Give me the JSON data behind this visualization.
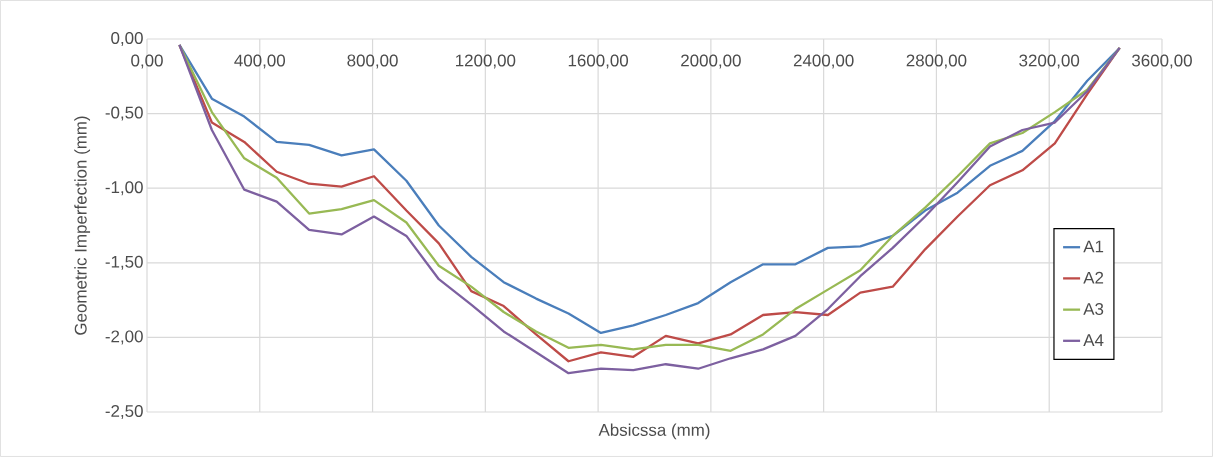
{
  "chart_data": {
    "type": "line",
    "xlabel": "Absicssa (mm)",
    "ylabel": "Geometric Imperfection (mm)",
    "x": [
      115,
      230,
      345,
      460,
      575,
      690,
      805,
      920,
      1035,
      1150,
      1265,
      1380,
      1495,
      1610,
      1725,
      1840,
      1955,
      2070,
      2185,
      2300,
      2415,
      2530,
      2645,
      2760,
      2875,
      2990,
      3105,
      3220,
      3335,
      3450
    ],
    "series": [
      {
        "name": "A1",
        "color": "#4a7ebb",
        "values": [
          -0.04,
          -0.4,
          -0.52,
          -0.69,
          -0.71,
          -0.78,
          -0.74,
          -0.95,
          -1.25,
          -1.46,
          -1.63,
          -1.74,
          -1.84,
          -1.97,
          -1.92,
          -1.85,
          -1.77,
          -1.63,
          -1.51,
          -1.51,
          -1.4,
          -1.39,
          -1.32,
          -1.15,
          -1.03,
          -0.85,
          -0.75,
          -0.55,
          -0.28,
          -0.06
        ]
      },
      {
        "name": "A2",
        "color": "#be4b48",
        "values": [
          -0.04,
          -0.56,
          -0.69,
          -0.89,
          -0.97,
          -0.99,
          -0.92,
          -1.15,
          -1.37,
          -1.69,
          -1.79,
          -1.98,
          -2.16,
          -2.1,
          -2.13,
          -1.99,
          -2.04,
          -1.98,
          -1.85,
          -1.83,
          -1.85,
          -1.7,
          -1.66,
          -1.41,
          -1.19,
          -0.98,
          -0.88,
          -0.7,
          -0.37,
          -0.06
        ]
      },
      {
        "name": "A3",
        "color": "#98b954",
        "values": [
          -0.04,
          -0.49,
          -0.8,
          -0.93,
          -1.17,
          -1.14,
          -1.08,
          -1.23,
          -1.52,
          -1.66,
          -1.83,
          -1.96,
          -2.07,
          -2.05,
          -2.08,
          -2.05,
          -2.05,
          -2.09,
          -1.98,
          -1.81,
          -1.68,
          -1.55,
          -1.32,
          -1.13,
          -0.92,
          -0.7,
          -0.63,
          -0.49,
          -0.34,
          -0.06
        ]
      },
      {
        "name": "A4",
        "color": "#7d60a0",
        "values": [
          -0.04,
          -0.61,
          -1.01,
          -1.09,
          -1.28,
          -1.31,
          -1.19,
          -1.32,
          -1.61,
          -1.78,
          -1.96,
          -2.1,
          -2.24,
          -2.21,
          -2.22,
          -2.18,
          -2.21,
          -2.14,
          -2.08,
          -1.99,
          -1.81,
          -1.59,
          -1.4,
          -1.19,
          -0.96,
          -0.72,
          -0.61,
          -0.56,
          -0.35,
          -0.06
        ]
      }
    ],
    "xlim": [
      0,
      3600
    ],
    "ylim": [
      -2.5,
      0
    ],
    "xticks": [
      {
        "value": 0,
        "label": "0,00"
      },
      {
        "value": 400,
        "label": "400,00"
      },
      {
        "value": 800,
        "label": "800,00"
      },
      {
        "value": 1200,
        "label": "1200,00"
      },
      {
        "value": 1600,
        "label": "1600,00"
      },
      {
        "value": 2000,
        "label": "2000,00"
      },
      {
        "value": 2400,
        "label": "2400,00"
      },
      {
        "value": 2800,
        "label": "2800,00"
      },
      {
        "value": 3200,
        "label": "3200,00"
      },
      {
        "value": 3600,
        "label": "3600,00"
      }
    ],
    "yticks": [
      {
        "value": -2.5,
        "label": "-2,50"
      },
      {
        "value": -2,
        "label": "-2,00"
      },
      {
        "value": -1.5,
        "label": "-1,50"
      },
      {
        "value": -1,
        "label": "-1,00"
      },
      {
        "value": -0.5,
        "label": "-0,50"
      },
      {
        "value": 0,
        "label": "0,00"
      }
    ],
    "grid": true,
    "legend": "bottom right",
    "marker": "none",
    "line_style": "solid"
  }
}
